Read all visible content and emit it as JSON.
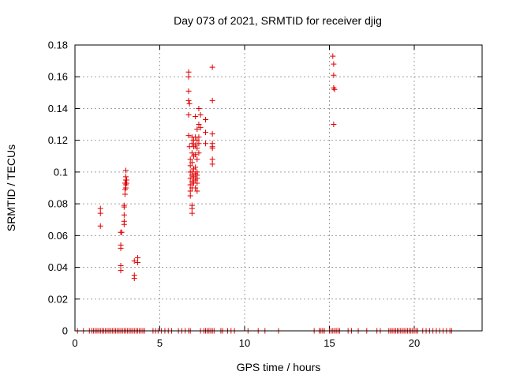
{
  "chart_data": {
    "type": "scatter",
    "title": "Day 073 of 2021, SRMTID for receiver djig",
    "xlabel": "GPS time / hours",
    "ylabel": "SRMTID / TECUs",
    "xlim": [
      0,
      24
    ],
    "ylim": [
      0,
      0.18
    ],
    "xticks": [
      0,
      5,
      10,
      15,
      20
    ],
    "xtick_labels": [
      "0",
      "5",
      "10",
      "15",
      "20"
    ],
    "yticks": [
      0,
      0.02,
      0.04,
      0.06,
      0.08,
      0.1,
      0.12,
      0.14,
      0.16,
      0.18
    ],
    "ytick_labels": [
      "0",
      "0.02",
      "0.04",
      "0.06",
      "0.08",
      "0.1",
      "0.12",
      "0.14",
      "0.16",
      "0.18"
    ],
    "grid": true,
    "marker": "plus",
    "color": "#e00000",
    "series": [
      {
        "name": "SRMTID",
        "points": [
          [
            1.5,
            0.077
          ],
          [
            1.5,
            0.074
          ],
          [
            1.5,
            0.066
          ],
          [
            2.7,
            0.062
          ],
          [
            2.7,
            0.054
          ],
          [
            2.7,
            0.052
          ],
          [
            2.7,
            0.041
          ],
          [
            2.7,
            0.038
          ],
          [
            2.75,
            0.062
          ],
          [
            2.9,
            0.079
          ],
          [
            2.9,
            0.078
          ],
          [
            2.9,
            0.073
          ],
          [
            2.9,
            0.069
          ],
          [
            2.9,
            0.067
          ],
          [
            2.95,
            0.093
          ],
          [
            2.95,
            0.089
          ],
          [
            2.95,
            0.086
          ],
          [
            3.0,
            0.101
          ],
          [
            3.0,
            0.097
          ],
          [
            3.0,
            0.095
          ],
          [
            3.0,
            0.092
          ],
          [
            3.0,
            0.09
          ],
          [
            3.05,
            0.095
          ],
          [
            3.05,
            0.093
          ],
          [
            3.5,
            0.044
          ],
          [
            3.5,
            0.035
          ],
          [
            3.5,
            0.033
          ],
          [
            3.7,
            0.046
          ],
          [
            3.7,
            0.043
          ],
          [
            6.7,
            0.163
          ],
          [
            6.7,
            0.16
          ],
          [
            6.7,
            0.151
          ],
          [
            6.7,
            0.145
          ],
          [
            6.7,
            0.136
          ],
          [
            6.7,
            0.123
          ],
          [
            6.75,
            0.143
          ],
          [
            6.75,
            0.116
          ],
          [
            6.8,
            0.108
          ],
          [
            6.8,
            0.104
          ],
          [
            6.8,
            0.1
          ],
          [
            6.8,
            0.096
          ],
          [
            6.8,
            0.092
          ],
          [
            6.8,
            0.088
          ],
          [
            6.8,
            0.085
          ],
          [
            6.9,
            0.122
          ],
          [
            6.9,
            0.118
          ],
          [
            6.9,
            0.112
          ],
          [
            6.9,
            0.106
          ],
          [
            6.9,
            0.1
          ],
          [
            6.9,
            0.098
          ],
          [
            6.9,
            0.094
          ],
          [
            6.9,
            0.09
          ],
          [
            6.9,
            0.079
          ],
          [
            6.9,
            0.077
          ],
          [
            6.9,
            0.074
          ],
          [
            7.0,
            0.12
          ],
          [
            7.0,
            0.116
          ],
          [
            7.0,
            0.11
          ],
          [
            7.0,
            0.102
          ],
          [
            7.0,
            0.097
          ],
          [
            7.0,
            0.093
          ],
          [
            7.1,
            0.135
          ],
          [
            7.1,
            0.122
          ],
          [
            7.1,
            0.117
          ],
          [
            7.1,
            0.111
          ],
          [
            7.1,
            0.103
          ],
          [
            7.1,
            0.099
          ],
          [
            7.1,
            0.095
          ],
          [
            7.1,
            0.09
          ],
          [
            7.2,
            0.127
          ],
          [
            7.2,
            0.12
          ],
          [
            7.2,
            0.115
          ],
          [
            7.2,
            0.108
          ],
          [
            7.2,
            0.1
          ],
          [
            7.2,
            0.098
          ],
          [
            7.2,
            0.096
          ],
          [
            7.2,
            0.093
          ],
          [
            7.2,
            0.088
          ],
          [
            7.3,
            0.14
          ],
          [
            7.3,
            0.13
          ],
          [
            7.3,
            0.122
          ],
          [
            7.3,
            0.118
          ],
          [
            7.3,
            0.112
          ],
          [
            7.4,
            0.136
          ],
          [
            7.4,
            0.128
          ],
          [
            7.7,
            0.133
          ],
          [
            7.7,
            0.125
          ],
          [
            7.7,
            0.118
          ],
          [
            8.1,
            0.166
          ],
          [
            8.1,
            0.145
          ],
          [
            8.1,
            0.124
          ],
          [
            8.1,
            0.118
          ],
          [
            8.1,
            0.116
          ],
          [
            8.1,
            0.115
          ],
          [
            8.1,
            0.108
          ],
          [
            8.1,
            0.105
          ],
          [
            15.2,
            0.173
          ],
          [
            15.25,
            0.168
          ],
          [
            15.25,
            0.161
          ],
          [
            15.25,
            0.153
          ],
          [
            15.3,
            0.152
          ],
          [
            15.25,
            0.13
          ]
        ]
      }
    ],
    "zero_markers_x": [
      0.15,
      0.5,
      0.85,
      1.0,
      1.1,
      1.2,
      1.3,
      1.4,
      1.5,
      1.6,
      1.7,
      1.8,
      1.9,
      2.0,
      2.1,
      2.2,
      2.3,
      2.4,
      2.5,
      2.6,
      2.7,
      2.8,
      2.9,
      3.0,
      3.1,
      3.2,
      3.3,
      3.4,
      3.5,
      3.6,
      3.7,
      3.8,
      3.9,
      4.0,
      4.1,
      4.6,
      4.75,
      4.9,
      5.1,
      5.3,
      5.5,
      5.7,
      6.1,
      6.3,
      6.5,
      6.7,
      6.8,
      7.4,
      7.6,
      7.7,
      7.8,
      7.9,
      8.0,
      8.1,
      8.2,
      8.6,
      8.7,
      9.0,
      9.2,
      9.4,
      10.2,
      10.8,
      11.2,
      12.0,
      14.1,
      14.4,
      14.5,
      14.6,
      14.7,
      15.0,
      15.1,
      15.2,
      15.3,
      15.4,
      15.5,
      15.6,
      16.1,
      16.3,
      16.7,
      17.2,
      17.8,
      18.0,
      18.5,
      18.6,
      18.7,
      18.8,
      18.9,
      19.0,
      19.1,
      19.2,
      19.3,
      19.4,
      19.5,
      19.6,
      19.7,
      19.8,
      19.9,
      20.0,
      20.1,
      20.2,
      20.5,
      20.7,
      20.9,
      21.1,
      21.3,
      21.5,
      21.7,
      21.9,
      22.1,
      22.2
    ]
  }
}
